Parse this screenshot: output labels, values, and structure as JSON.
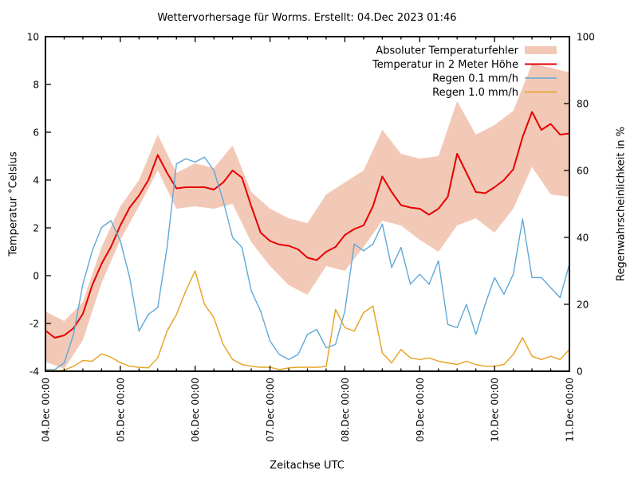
{
  "chart_data": {
    "type": "line",
    "title": "Wettervorhersage für Worms. Erstellt: 04.Dec 2023 01:46",
    "xlabel": "Zeitachse UTC",
    "ylabel_left": "Temperatur °Celsius",
    "ylabel_right": "Regenwahrscheinlichkeit in %",
    "x_tick_labels": [
      "04.Dec 00:00",
      "05.Dec 00:00",
      "06.Dec 00:00",
      "07.Dec 00:00",
      "08.Dec 00:00",
      "09.Dec 00:00",
      "10.Dec 00:00",
      "11.Dec 00:00"
    ],
    "x_range_days": [
      0,
      7
    ],
    "x_minor_tick_hours": 6,
    "y_left": {
      "min": -4,
      "max": 10,
      "ticks": [
        -4,
        -2,
        0,
        2,
        4,
        6,
        8,
        10
      ]
    },
    "y_right": {
      "min": 0,
      "max": 100,
      "ticks": [
        0,
        20,
        40,
        60,
        80,
        100
      ]
    },
    "grid": false,
    "legend_position": "top-right-inside",
    "colors": {
      "band": "#f2c9b7",
      "temperature": "#e60000",
      "rain_01": "#5fa8d8",
      "rain_10": "#e6a01e",
      "axis": "#000000"
    },
    "legend": [
      {
        "label": "Absoluter Temperaturfehler",
        "type": "band",
        "color": "#f2c9b7"
      },
      {
        "label": "Temperatur in 2 Meter Höhe",
        "type": "line",
        "color": "#e60000"
      },
      {
        "label": "Regen 0.1 mm/h",
        "type": "line",
        "color": "#5fa8d8"
      },
      {
        "label": "Regen 1.0 mm/h",
        "type": "line",
        "color": "#e6a01e"
      }
    ],
    "series": {
      "temperature_error_band": {
        "name": "Absoluter Temperaturfehler",
        "axis": "left",
        "t_step_days": 0.25,
        "upper": [
          -1.5,
          -1.9,
          -1.1,
          1.2,
          2.9,
          4.0,
          5.9,
          4.3,
          4.7,
          4.5,
          5.45,
          3.5,
          2.8,
          2.4,
          2.2,
          3.4,
          3.9,
          4.4,
          6.1,
          5.1,
          4.9,
          5.0,
          7.3,
          5.9,
          6.3,
          6.9,
          8.85,
          8.7,
          8.5
        ],
        "lower": [
          -3.6,
          -3.9,
          -2.7,
          -0.3,
          1.5,
          2.9,
          4.4,
          2.8,
          2.9,
          2.8,
          3.0,
          1.4,
          0.4,
          -0.4,
          -0.8,
          0.4,
          0.2,
          1.2,
          2.3,
          2.1,
          1.5,
          1.0,
          2.1,
          2.4,
          1.8,
          2.8,
          4.55,
          3.4,
          3.3
        ]
      },
      "temperature_2m": {
        "name": "Temperatur in 2 Meter Höhe",
        "axis": "left",
        "unit": "°C",
        "t_step_days": 0.125,
        "values": [
          -2.3,
          -2.6,
          -2.5,
          -2.2,
          -1.6,
          -0.4,
          0.5,
          1.2,
          2.1,
          2.85,
          3.35,
          4.0,
          5.05,
          4.3,
          3.65,
          3.7,
          3.7,
          3.7,
          3.6,
          3.9,
          4.4,
          4.1,
          2.9,
          1.8,
          1.45,
          1.3,
          1.25,
          1.1,
          0.75,
          0.65,
          1.0,
          1.2,
          1.7,
          1.95,
          2.1,
          2.9,
          4.15,
          3.5,
          2.95,
          2.85,
          2.8,
          2.55,
          2.8,
          3.3,
          5.1,
          4.3,
          3.5,
          3.45,
          3.7,
          4.0,
          4.45,
          5.8,
          6.85,
          6.1,
          6.35,
          5.9,
          5.95
        ]
      },
      "rain_01mm": {
        "name": "Regen 0.1 mm/h",
        "axis": "right",
        "unit": "%",
        "t_step_days": 0.125,
        "values": [
          0.5,
          0.5,
          2.5,
          11,
          26,
          36,
          43,
          45,
          39,
          28,
          12,
          17,
          19,
          37,
          62,
          63.5,
          62.5,
          64,
          60,
          51,
          40,
          37,
          24,
          18,
          9,
          5,
          3.5,
          5,
          11,
          12.5,
          7,
          8,
          18,
          38,
          36,
          38,
          44,
          31,
          37,
          26,
          29,
          26,
          33,
          14,
          13,
          20,
          11,
          20,
          28,
          23,
          29,
          45.5,
          28,
          28,
          25,
          22,
          32
        ]
      },
      "rain_10mm": {
        "name": "Regen 1.0 mm/h",
        "axis": "right",
        "unit": "%",
        "t_step_days": 0.125,
        "values": [
          0.2,
          0.2,
          0.3,
          1.5,
          3.2,
          3.0,
          5.2,
          4.2,
          2.6,
          1.5,
          1.2,
          1,
          4,
          12,
          17,
          24,
          30,
          20,
          16,
          8,
          3.5,
          2,
          1.5,
          1.2,
          1.2,
          0.5,
          1,
          1.2,
          1.2,
          1.2,
          1.4,
          18.5,
          13,
          12,
          17.5,
          19.5,
          5.5,
          2.5,
          6.5,
          4,
          3.5,
          4,
          3,
          2.5,
          2,
          3,
          2,
          1.5,
          1.5,
          2,
          5,
          10,
          4.5,
          3.5,
          4.5,
          3.5,
          6.5
        ]
      }
    }
  }
}
